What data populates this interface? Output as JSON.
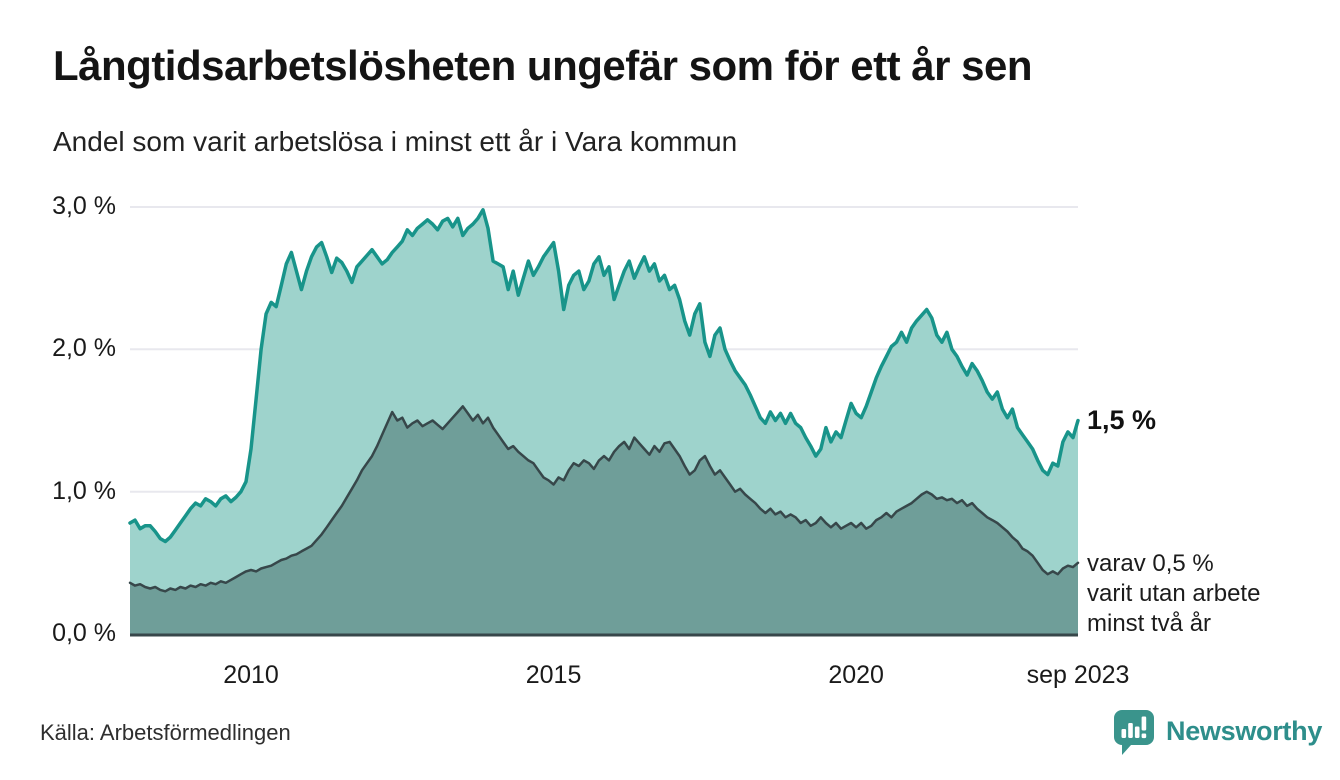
{
  "header": {
    "title": "Långtidsarbetslösheten ungefär som för ett år sen",
    "subtitle": "Andel som varit arbetslösa i minst ett år i Vara kommun"
  },
  "footer": {
    "source": "Källa: Arbetsförmedlingen",
    "logo_text": "Newsworthy",
    "logo_icon": "newsworthy-bubble-bar-chart-icon",
    "logo_color": "#2e8e8b"
  },
  "chart_data": {
    "type": "area",
    "title": "Långtidsarbetslösheten ungefär som för ett år sen",
    "subtitle": "Andel som varit arbetslösa i minst ett år i Vara kommun",
    "unit": "%",
    "x_start": "2008-01",
    "x_end": "2023-09",
    "x_resolution": "monthly",
    "ylim": [
      0,
      3
    ],
    "grid": "horizontal-only",
    "colors": {
      "grid": "#e8e8ee",
      "axis": "#37474a",
      "line_1yr": "#18948a",
      "fill_1yr": "#9ed3cc",
      "line_2yr": "#37474a",
      "fill_2yr": "#6f9e99"
    },
    "yticks": [
      {
        "label": "3,0 %",
        "value": 3.0
      },
      {
        "label": "2,0 %",
        "value": 2.0
      },
      {
        "label": "1,0 %",
        "value": 1.0
      },
      {
        "label": "0,0 %",
        "value": 0.0
      }
    ],
    "xticks": [
      {
        "label": "2010",
        "month_index": 24
      },
      {
        "label": "2015",
        "month_index": 84
      },
      {
        "label": "2020",
        "month_index": 144
      },
      {
        "label": "sep 2023",
        "month_index": 188
      }
    ],
    "annotations": {
      "last_value_label": "1,5 %",
      "subset_label": "varav 0,5 %\nvarit utan arbete\nminst två år"
    },
    "series": [
      {
        "id": "minst-ett-ar",
        "name": "Andel arbetslösa minst ett år",
        "color": "#18948a",
        "fill": "#9ed3cc",
        "stroke_width": 3.5,
        "last_value": 1.5,
        "values": [
          0.78,
          0.8,
          0.74,
          0.76,
          0.76,
          0.72,
          0.67,
          0.65,
          0.68,
          0.73,
          0.78,
          0.83,
          0.88,
          0.92,
          0.9,
          0.95,
          0.93,
          0.9,
          0.95,
          0.97,
          0.93,
          0.96,
          1.0,
          1.07,
          1.3,
          1.65,
          2.0,
          2.25,
          2.33,
          2.3,
          2.45,
          2.6,
          2.68,
          2.55,
          2.42,
          2.55,
          2.65,
          2.72,
          2.75,
          2.65,
          2.54,
          2.64,
          2.61,
          2.55,
          2.47,
          2.58,
          2.62,
          2.66,
          2.7,
          2.65,
          2.6,
          2.63,
          2.68,
          2.72,
          2.76,
          2.84,
          2.8,
          2.85,
          2.88,
          2.91,
          2.88,
          2.84,
          2.9,
          2.92,
          2.86,
          2.92,
          2.8,
          2.85,
          2.88,
          2.92,
          2.98,
          2.85,
          2.62,
          2.6,
          2.58,
          2.42,
          2.55,
          2.38,
          2.5,
          2.62,
          2.52,
          2.58,
          2.65,
          2.7,
          2.75,
          2.55,
          2.28,
          2.45,
          2.52,
          2.55,
          2.42,
          2.48,
          2.6,
          2.65,
          2.52,
          2.58,
          2.35,
          2.45,
          2.55,
          2.62,
          2.5,
          2.58,
          2.65,
          2.55,
          2.6,
          2.48,
          2.52,
          2.42,
          2.45,
          2.35,
          2.2,
          2.1,
          2.25,
          2.32,
          2.05,
          1.95,
          2.1,
          2.15,
          2.0,
          1.92,
          1.85,
          1.8,
          1.75,
          1.68,
          1.6,
          1.52,
          1.48,
          1.56,
          1.5,
          1.55,
          1.48,
          1.55,
          1.48,
          1.45,
          1.38,
          1.32,
          1.25,
          1.3,
          1.45,
          1.35,
          1.42,
          1.38,
          1.5,
          1.62,
          1.55,
          1.52,
          1.6,
          1.7,
          1.8,
          1.88,
          1.95,
          2.02,
          2.05,
          2.12,
          2.05,
          2.15,
          2.2,
          2.24,
          2.28,
          2.22,
          2.1,
          2.05,
          2.12,
          2.0,
          1.95,
          1.88,
          1.82,
          1.9,
          1.85,
          1.78,
          1.7,
          1.65,
          1.7,
          1.58,
          1.52,
          1.58,
          1.45,
          1.4,
          1.35,
          1.3,
          1.22,
          1.15,
          1.12,
          1.2,
          1.18,
          1.35,
          1.42,
          1.38,
          1.5
        ]
      },
      {
        "id": "minst-tva-ar",
        "name": "Andel utan arbete minst två år",
        "color": "#37474a",
        "fill": "#6f9e99",
        "stroke_width": 2.5,
        "last_value": 0.5,
        "values": [
          0.36,
          0.34,
          0.35,
          0.33,
          0.32,
          0.33,
          0.31,
          0.3,
          0.32,
          0.31,
          0.33,
          0.32,
          0.34,
          0.33,
          0.35,
          0.34,
          0.36,
          0.35,
          0.37,
          0.36,
          0.38,
          0.4,
          0.42,
          0.44,
          0.45,
          0.44,
          0.46,
          0.47,
          0.48,
          0.5,
          0.52,
          0.53,
          0.55,
          0.56,
          0.58,
          0.6,
          0.62,
          0.66,
          0.7,
          0.75,
          0.8,
          0.85,
          0.9,
          0.96,
          1.02,
          1.08,
          1.15,
          1.2,
          1.25,
          1.32,
          1.4,
          1.48,
          1.56,
          1.5,
          1.52,
          1.45,
          1.48,
          1.5,
          1.46,
          1.48,
          1.5,
          1.47,
          1.44,
          1.48,
          1.52,
          1.56,
          1.6,
          1.55,
          1.5,
          1.54,
          1.48,
          1.52,
          1.45,
          1.4,
          1.35,
          1.3,
          1.32,
          1.28,
          1.25,
          1.22,
          1.2,
          1.15,
          1.1,
          1.08,
          1.05,
          1.1,
          1.08,
          1.15,
          1.2,
          1.18,
          1.22,
          1.2,
          1.16,
          1.22,
          1.25,
          1.22,
          1.28,
          1.32,
          1.35,
          1.3,
          1.38,
          1.34,
          1.3,
          1.26,
          1.32,
          1.28,
          1.34,
          1.35,
          1.3,
          1.25,
          1.18,
          1.12,
          1.15,
          1.22,
          1.25,
          1.18,
          1.12,
          1.15,
          1.1,
          1.05,
          1.0,
          1.02,
          0.98,
          0.95,
          0.92,
          0.88,
          0.85,
          0.88,
          0.84,
          0.86,
          0.82,
          0.84,
          0.82,
          0.78,
          0.8,
          0.76,
          0.78,
          0.82,
          0.78,
          0.75,
          0.78,
          0.74,
          0.76,
          0.78,
          0.75,
          0.78,
          0.74,
          0.76,
          0.8,
          0.82,
          0.85,
          0.82,
          0.86,
          0.88,
          0.9,
          0.92,
          0.95,
          0.98,
          1.0,
          0.98,
          0.95,
          0.96,
          0.94,
          0.95,
          0.92,
          0.94,
          0.9,
          0.92,
          0.88,
          0.85,
          0.82,
          0.8,
          0.78,
          0.75,
          0.72,
          0.68,
          0.65,
          0.6,
          0.58,
          0.55,
          0.5,
          0.45,
          0.42,
          0.44,
          0.42,
          0.46,
          0.48,
          0.47,
          0.5
        ]
      }
    ]
  }
}
